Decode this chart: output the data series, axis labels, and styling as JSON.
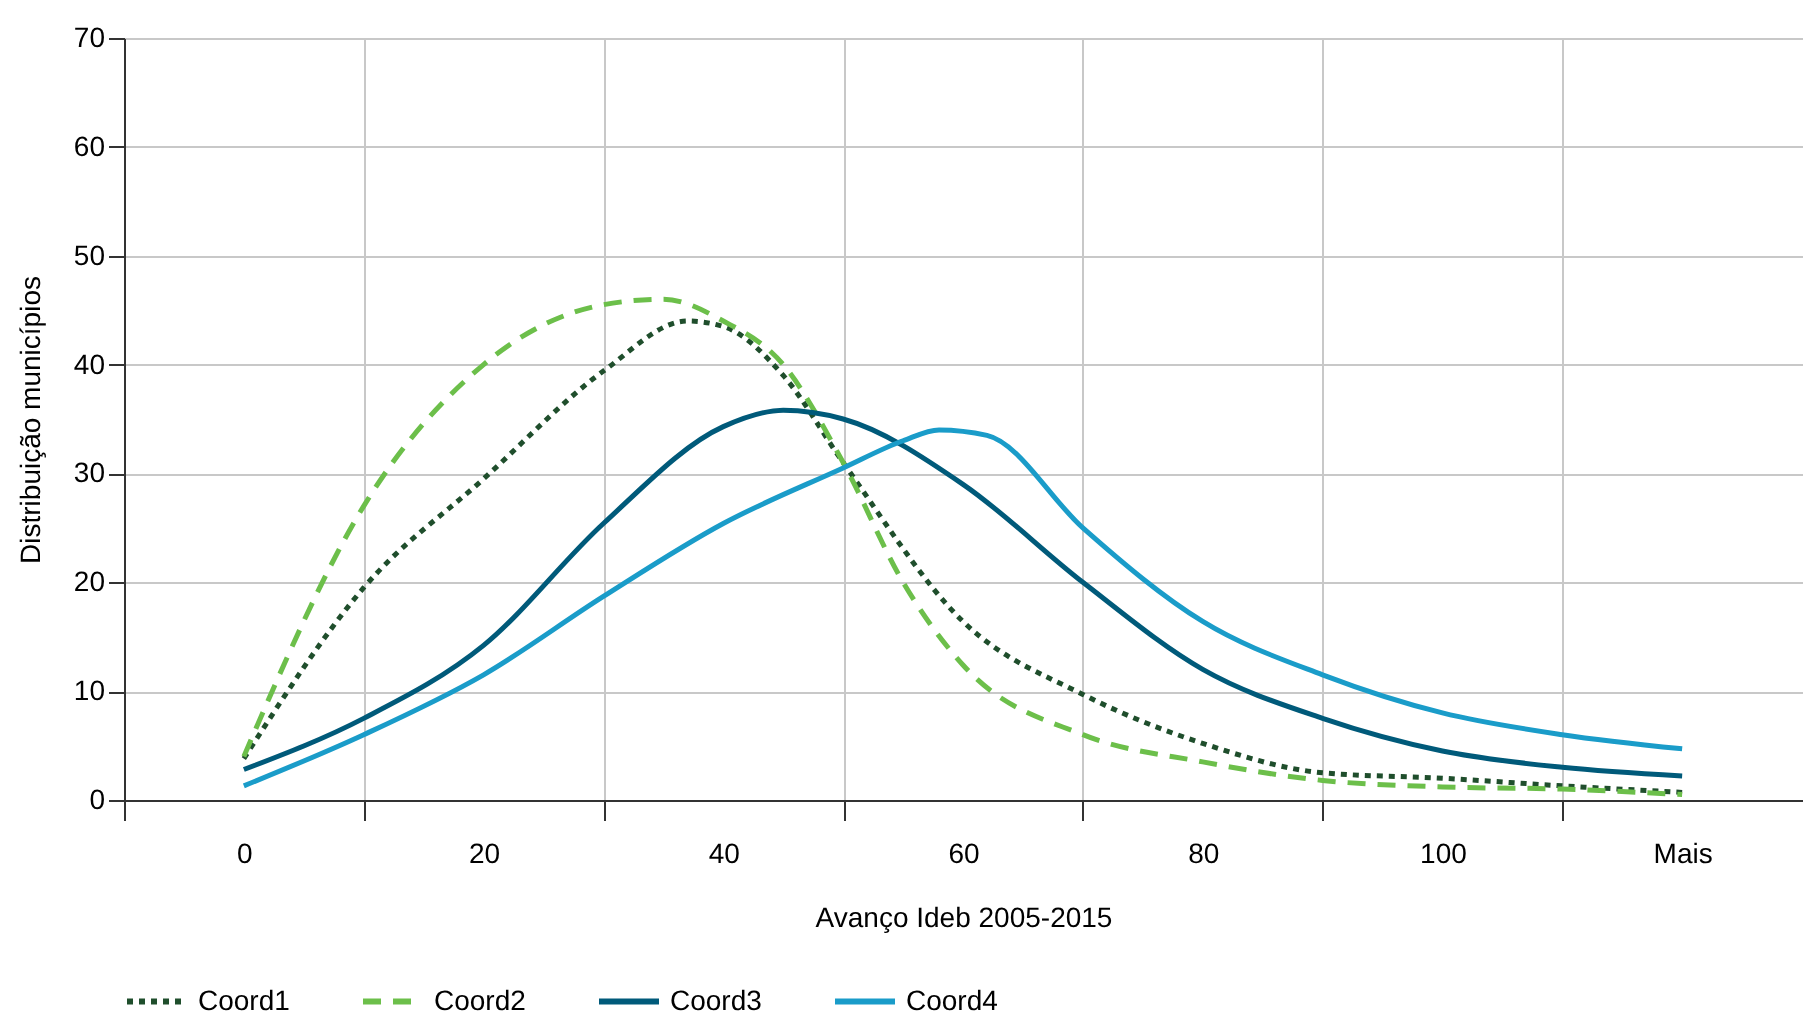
{
  "chart_data": {
    "type": "line",
    "xlabel": "Avanço Ideb 2005-2015",
    "ylabel": "Distribuição municípios",
    "xlim": [
      -10,
      130
    ],
    "xticks": [
      {
        "value": -10,
        "label": null
      },
      0,
      {
        "value": 10,
        "label": null
      },
      20,
      {
        "value": 30,
        "label": null
      },
      40,
      {
        "value": 50,
        "label": null
      },
      60,
      {
        "value": 70,
        "label": null
      },
      80,
      {
        "value": 90,
        "label": null
      },
      100,
      {
        "value": 110,
        "label": null
      },
      {
        "value": 120,
        "label": "Mais"
      }
    ],
    "ylim": [
      0,
      70
    ],
    "yticks": [
      0,
      10,
      20,
      30,
      40,
      50,
      60,
      70
    ],
    "grid": true,
    "legend": "bottom",
    "series": [
      {
        "name": "Coord1",
        "color": "#1f4e2c",
        "line_style": "dotted",
        "x": [
          0,
          10,
          20,
          30,
          37,
          40,
          45,
          50,
          60,
          70,
          80,
          90,
          100,
          110,
          120
        ],
        "values": [
          3.8,
          19.5,
          29.5,
          39.4,
          44,
          43.5,
          39,
          31,
          16.4,
          9.7,
          5.2,
          2.5,
          2,
          1.3,
          0.7
        ]
      },
      {
        "name": "Coord2",
        "color": "#6cbf4a",
        "line_style": "dashed",
        "x": [
          0,
          10,
          20,
          30,
          35,
          40,
          45,
          50,
          55,
          60,
          70,
          80,
          90,
          100,
          110,
          120
        ],
        "values": [
          4,
          27,
          40,
          45.5,
          46,
          44,
          40,
          31,
          20,
          12.4,
          6,
          3.5,
          1.8,
          1.2,
          1,
          0.5
        ]
      },
      {
        "name": "Coord3",
        "color": "#005a7a",
        "line_style": "solid",
        "x": [
          0,
          10,
          20,
          30,
          40,
          45,
          50,
          60,
          70,
          80,
          90,
          100,
          110,
          120
        ],
        "values": [
          2.8,
          7.5,
          14.2,
          25.4,
          34.3,
          35.8,
          35,
          29,
          20,
          12,
          7.5,
          4.5,
          3,
          2.2
        ]
      },
      {
        "name": "Coord4",
        "color": "#1a9cc9",
        "line_style": "solid",
        "x": [
          0,
          10,
          20,
          30,
          40,
          50,
          55,
          58,
          62,
          70,
          80,
          90,
          100,
          110,
          120
        ],
        "values": [
          1.3,
          6,
          11.5,
          18.7,
          25.4,
          30.5,
          33,
          34,
          33.5,
          25,
          16.4,
          11.5,
          8,
          6,
          4.7
        ]
      }
    ]
  }
}
